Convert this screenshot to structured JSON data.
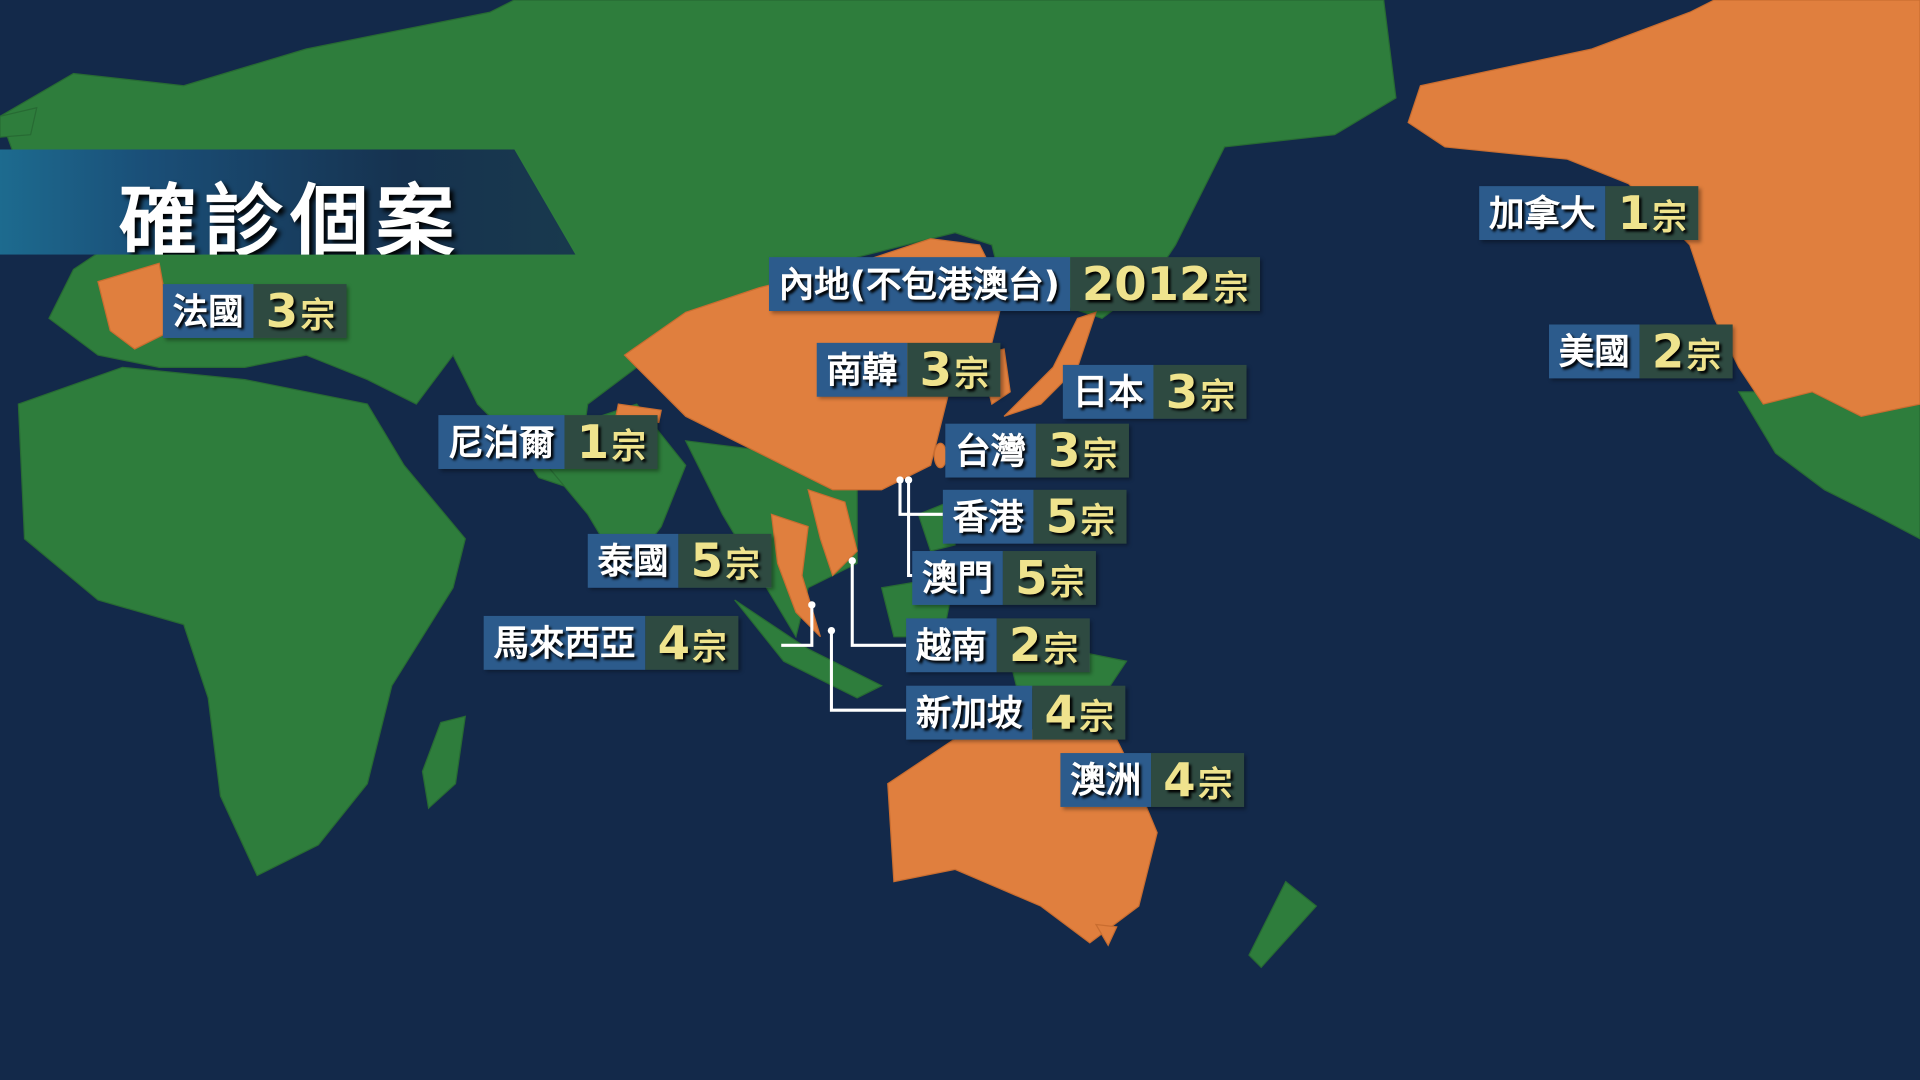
{
  "title": "確診個案",
  "colors": {
    "ocean": "#13294a",
    "land": "#2e7d3c",
    "affected": "#e07f3e",
    "label_name_bg": "#2c5b8c",
    "label_count_bg": "#2e4a41",
    "count_text": "#efe38d"
  },
  "labels": [
    {
      "name": "加拿大",
      "count": "1",
      "unit": "宗"
    },
    {
      "name": "內地(不包港澳台)",
      "count": "2012",
      "unit": "宗"
    },
    {
      "name": "法國",
      "count": "3",
      "unit": "宗"
    },
    {
      "name": "美國",
      "count": "2",
      "unit": "宗"
    },
    {
      "name": "南韓",
      "count": "3",
      "unit": "宗"
    },
    {
      "name": "日本",
      "count": "3",
      "unit": "宗"
    },
    {
      "name": "尼泊爾",
      "count": "1",
      "unit": "宗"
    },
    {
      "name": "台灣",
      "count": "3",
      "unit": "宗"
    },
    {
      "name": "香港",
      "count": "5",
      "unit": "宗"
    },
    {
      "name": "泰國",
      "count": "5",
      "unit": "宗"
    },
    {
      "name": "澳門",
      "count": "5",
      "unit": "宗"
    },
    {
      "name": "馬來西亞",
      "count": "4",
      "unit": "宗"
    },
    {
      "name": "越南",
      "count": "2",
      "unit": "宗"
    },
    {
      "name": "新加坡",
      "count": "4",
      "unit": "宗"
    },
    {
      "name": "澳洲",
      "count": "4",
      "unit": "宗"
    }
  ]
}
